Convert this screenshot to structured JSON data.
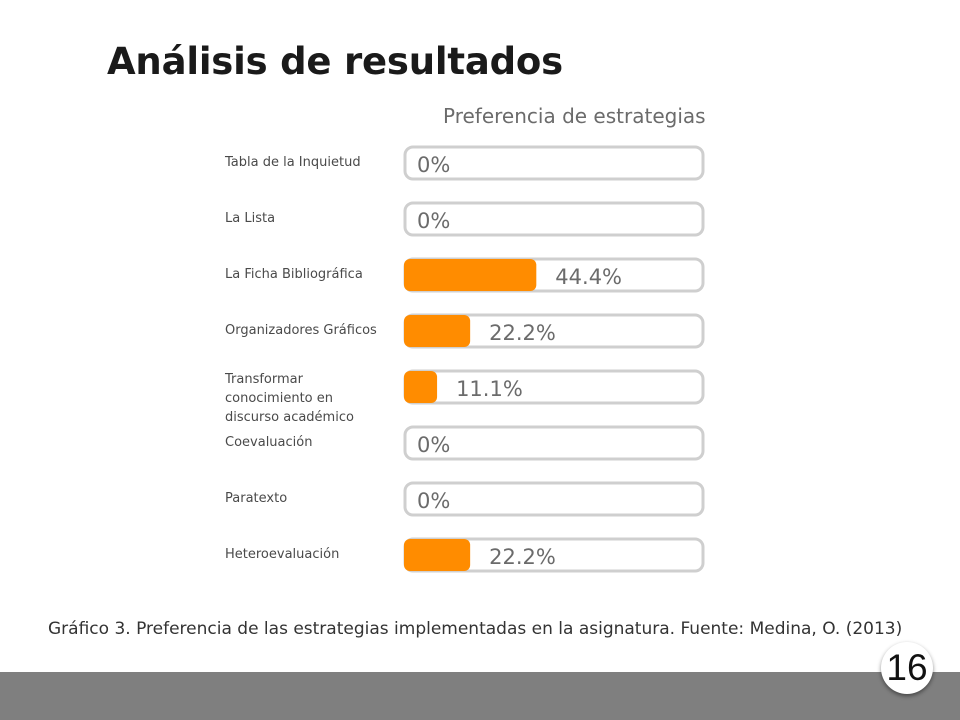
{
  "slide": {
    "title": "Análisis de resultados",
    "caption": "Gráfico 3. Preferencia de las estrategias implementadas en la asignatura. Fuente: Medina, O. (2013)",
    "page_number": "16"
  },
  "chart_data": {
    "type": "bar",
    "orientation": "horizontal",
    "title": "Preferencia de estrategias",
    "categories": [
      "Tabla de la Inquietud",
      "La Lista",
      "La Ficha Bibliográfica",
      "Organizadores Gráficos",
      "Transformar conocimiento en discurso académico",
      "Coevaluación",
      "Paratexto",
      "Heteroevaluación"
    ],
    "values": [
      0,
      0,
      44.4,
      22.2,
      11.1,
      0,
      0,
      22.2
    ],
    "data_labels": [
      "0%",
      "0%",
      "44.4%",
      "22.2%",
      "11.1%",
      "0%",
      "0%",
      "22.2%"
    ],
    "unit": "%",
    "xlim": [
      0,
      100
    ],
    "grid": false,
    "legend": "none",
    "colors": {
      "bar_fill": "#ff8c00",
      "track_border": "#cfcfcf",
      "label_text": "#6b6b6b"
    }
  }
}
